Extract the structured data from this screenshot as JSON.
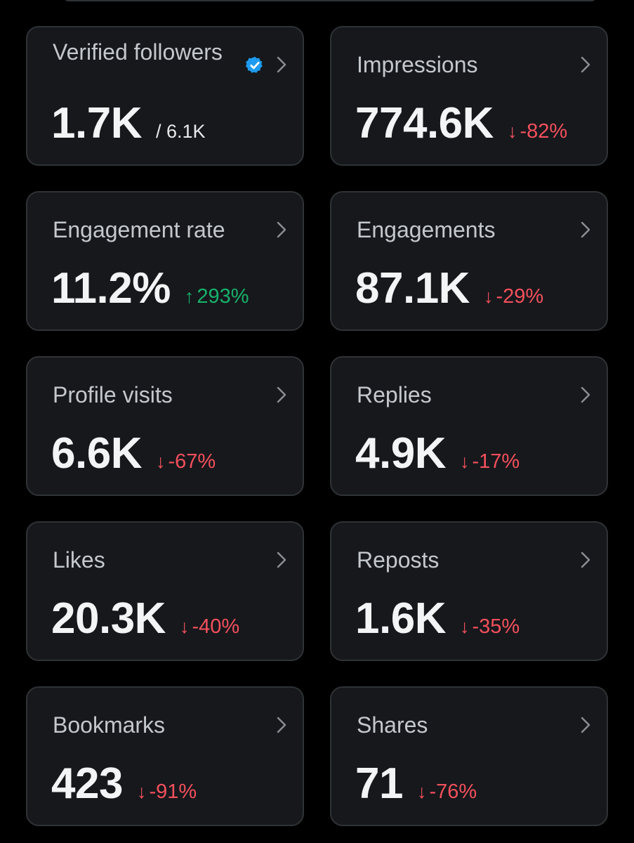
{
  "colors": {
    "background": "#000000",
    "card": "#16181c",
    "card_border": "#2f3336",
    "negative": "#f4505c",
    "positive": "#17b26a",
    "verified_badge": "#1d9bf0"
  },
  "cards": {
    "verified_followers": {
      "title": "Verified followers",
      "value": "1.7K",
      "sub": "/ 6.1K",
      "icon": "verified-badge-icon"
    },
    "impressions": {
      "title": "Impressions",
      "value": "774.6K",
      "delta": "-82%",
      "direction": "down"
    },
    "engagement_rate": {
      "title": "Engagement rate",
      "value": "11.2%",
      "delta": "293%",
      "direction": "up"
    },
    "engagements": {
      "title": "Engagements",
      "value": "87.1K",
      "delta": "-29%",
      "direction": "down"
    },
    "profile_visits": {
      "title": "Profile visits",
      "value": "6.6K",
      "delta": "-67%",
      "direction": "down"
    },
    "replies": {
      "title": "Replies",
      "value": "4.9K",
      "delta": "-17%",
      "direction": "down"
    },
    "likes": {
      "title": "Likes",
      "value": "20.3K",
      "delta": "-40%",
      "direction": "down"
    },
    "reposts": {
      "title": "Reposts",
      "value": "1.6K",
      "delta": "-35%",
      "direction": "down"
    },
    "bookmarks": {
      "title": "Bookmarks",
      "value": "423",
      "delta": "-91%",
      "direction": "down"
    },
    "shares": {
      "title": "Shares",
      "value": "71",
      "delta": "-76%",
      "direction": "down"
    }
  },
  "glyphs": {
    "arrow_down": "↓",
    "arrow_up": "↑"
  }
}
